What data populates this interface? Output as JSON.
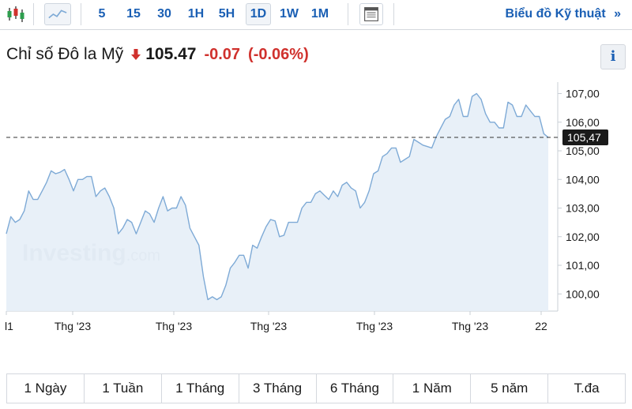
{
  "toolbar": {
    "chart_type_icons": [
      "candlestick-icon",
      "line-chart-icon"
    ],
    "timeframes": [
      "5",
      "15",
      "30",
      "1H",
      "5H",
      "1D",
      "1W",
      "1M"
    ],
    "active_timeframe": "1D",
    "layout_icon": "layout-icon",
    "tech_chart_label": "Biểu đồ Kỹ thuật",
    "tech_chart_arrow": "»"
  },
  "header": {
    "instrument": "Chỉ số Đô la Mỹ",
    "price": "105.47",
    "change": "-0.07",
    "change_pct": "(-0.06%)",
    "direction_icon": "down-arrow-icon",
    "info_label": "i"
  },
  "colors": {
    "accent": "#1a5fb4",
    "down": "#d0312d",
    "line": "#7eaad6",
    "area": "#e6eef7",
    "price_tag_bg": "#1a1a1a"
  },
  "range_buttons": [
    "1 Ngày",
    "1 Tuần",
    "1 Tháng",
    "3 Tháng",
    "6 Tháng",
    "1 Năm",
    "5 năm",
    "T.đa"
  ],
  "chart_data": {
    "type": "area",
    "ylim": [
      99.4,
      107.4
    ],
    "y_ticks": [
      "107,00",
      "106,00",
      "105,00",
      "104,00",
      "103,00",
      "102,00",
      "101,00",
      "100,00"
    ],
    "y_tick_values": [
      107,
      106,
      105,
      104,
      103,
      102,
      101,
      100
    ],
    "x_tick_labels": [
      "l1",
      "Thg '23",
      "Thg '23",
      "Thg '23",
      "Thg '23",
      "Thg '23",
      "22"
    ],
    "last_value": 105.47,
    "last_value_label": "105,47",
    "watermark": "Investing",
    "watermark_suffix": ".com",
    "values": [
      102.1,
      102.7,
      102.5,
      102.6,
      102.9,
      103.6,
      103.3,
      103.3,
      103.6,
      103.9,
      104.3,
      104.2,
      104.25,
      104.35,
      104.0,
      103.6,
      104.0,
      104.0,
      104.1,
      104.1,
      103.4,
      103.6,
      103.7,
      103.4,
      103.0,
      102.1,
      102.3,
      102.6,
      102.5,
      102.1,
      102.5,
      102.9,
      102.8,
      102.5,
      103.0,
      103.4,
      102.9,
      103.0,
      103.0,
      103.4,
      103.1,
      102.3,
      102.0,
      101.7,
      100.6,
      99.8,
      99.9,
      99.8,
      99.9,
      100.3,
      100.9,
      101.1,
      101.35,
      101.35,
      100.9,
      101.7,
      101.6,
      102.0,
      102.35,
      102.6,
      102.55,
      102.0,
      102.05,
      102.5,
      102.5,
      102.5,
      103.0,
      103.2,
      103.2,
      103.5,
      103.6,
      103.45,
      103.3,
      103.6,
      103.4,
      103.8,
      103.9,
      103.7,
      103.6,
      103.0,
      103.2,
      103.6,
      104.2,
      104.3,
      104.8,
      104.9,
      105.1,
      105.1,
      104.6,
      104.7,
      104.8,
      105.4,
      105.3,
      105.2,
      105.15,
      105.1,
      105.5,
      105.8,
      106.1,
      106.2,
      106.6,
      106.8,
      106.2,
      106.2,
      106.9,
      107.0,
      106.8,
      106.3,
      106.0,
      106.0,
      105.8,
      105.8,
      106.7,
      106.6,
      106.2,
      106.2,
      106.6,
      106.4,
      106.2,
      106.2,
      105.6,
      105.47
    ]
  }
}
